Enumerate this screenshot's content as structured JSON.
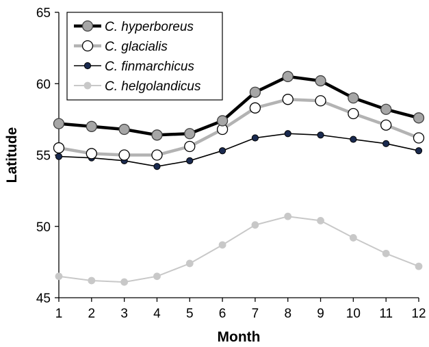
{
  "chart_data": {
    "type": "line",
    "xlabel": "Month",
    "ylabel": "Latitude",
    "x": [
      1,
      2,
      3,
      4,
      5,
      6,
      7,
      8,
      9,
      10,
      11,
      12
    ],
    "xlim": [
      1,
      12
    ],
    "ylim": [
      45,
      65
    ],
    "yticks": [
      45,
      50,
      55,
      60,
      65
    ],
    "grid": false,
    "legend_position": "top-left",
    "series": [
      {
        "name": "C. hyperboreus",
        "values": [
          57.2,
          57.0,
          56.8,
          56.4,
          56.5,
          57.4,
          59.4,
          60.5,
          60.2,
          59.0,
          58.2,
          57.6
        ],
        "color": "#000000",
        "marker_fill": "#a6a6a6",
        "marker_edge": "#404040"
      },
      {
        "name": "C. glacialis",
        "values": [
          55.5,
          55.1,
          55.0,
          55.0,
          55.6,
          56.8,
          58.3,
          58.9,
          58.8,
          57.9,
          57.1,
          56.2
        ],
        "color": "#b3b3b3",
        "marker_fill": "#ffffff",
        "marker_edge": "#000000"
      },
      {
        "name": "C. finmarchicus",
        "values": [
          54.9,
          54.8,
          54.6,
          54.2,
          54.6,
          55.3,
          56.2,
          56.5,
          56.4,
          56.1,
          55.8,
          55.3
        ],
        "color": "#000000",
        "marker_fill": "#1a2a4f",
        "marker_edge": "#000000"
      },
      {
        "name": "C. helgolandicus",
        "values": [
          46.5,
          46.2,
          46.1,
          46.5,
          47.4,
          48.7,
          50.1,
          50.7,
          50.4,
          49.2,
          48.1,
          47.2
        ],
        "color": "#c8c8c8",
        "marker_fill": "#c8c8c8",
        "marker_edge": "#c8c8c8"
      }
    ]
  }
}
